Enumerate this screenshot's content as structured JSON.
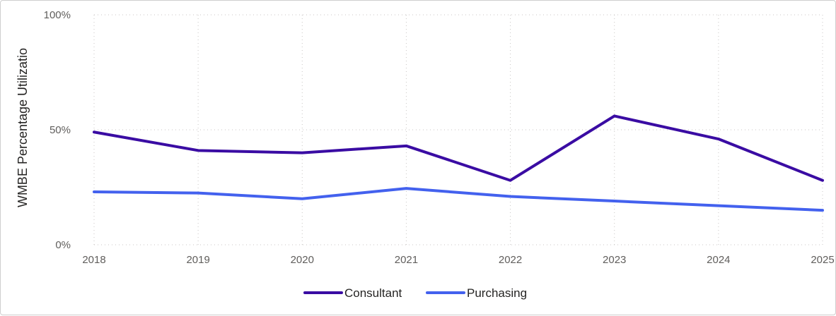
{
  "chart_data": {
    "type": "line",
    "ylabel": "WMBE Percentage Utilizatio",
    "xlabel": "",
    "x": [
      "2018",
      "2019",
      "2020",
      "2021",
      "2022",
      "2023",
      "2024",
      "2025"
    ],
    "ylim": [
      0,
      100
    ],
    "y_ticks": [
      {
        "value": 0,
        "label": "0%"
      },
      {
        "value": 50,
        "label": "50%"
      },
      {
        "value": 100,
        "label": "100%"
      }
    ],
    "grid": true,
    "legend_position": "bottom-center",
    "series": [
      {
        "name": "Consultant",
        "color": "#3a0ca3",
        "values": [
          49,
          41,
          40,
          43,
          28,
          56,
          46,
          28
        ]
      },
      {
        "name": "Purchasing",
        "color": "#4361ee",
        "values": [
          23,
          22.5,
          20,
          24.5,
          21,
          19,
          17,
          15
        ]
      }
    ]
  }
}
